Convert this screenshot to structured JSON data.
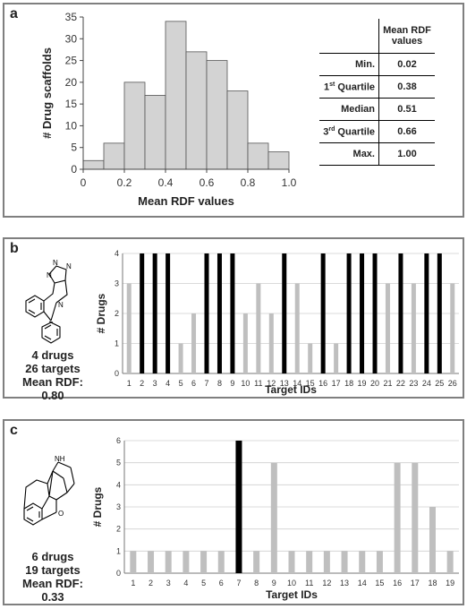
{
  "panels": {
    "a": {
      "label": "a"
    },
    "b": {
      "label": "b",
      "caption": [
        "4 drugs",
        "26 targets",
        "Mean RDF: 0.80"
      ]
    },
    "c": {
      "label": "c",
      "caption": [
        "6 drugs",
        "19 targets",
        "Mean RDF: 0.33"
      ]
    }
  },
  "stats_table": {
    "header": "Mean RDF values",
    "rows": [
      {
        "label": "Min.",
        "label_sup": "",
        "label_rest": "",
        "value": "0.02"
      },
      {
        "label": "1",
        "label_sup": "st",
        "label_rest": " Quartile",
        "value": "0.38"
      },
      {
        "label": "Median",
        "label_sup": "",
        "label_rest": "",
        "value": "0.51"
      },
      {
        "label": "3",
        "label_sup": "rd",
        "label_rest": " Quartile",
        "value": "0.66"
      },
      {
        "label": "Max.",
        "label_sup": "",
        "label_rest": "",
        "value": "1.00"
      }
    ]
  },
  "chart_data": [
    {
      "type": "bar",
      "bin_edges": [
        0,
        0.1,
        0.2,
        0.3,
        0.4,
        0.5,
        0.6,
        0.7,
        0.8,
        0.9,
        1.0
      ],
      "values": [
        2,
        6,
        20,
        17,
        34,
        27,
        25,
        18,
        6,
        4
      ],
      "xlabel": "Mean RDF values",
      "ylabel": "# Drug scaffolds",
      "xlim": [
        0,
        1.0
      ],
      "ylim": [
        0,
        35
      ],
      "xticks": [
        "0",
        "0.2",
        "0.4",
        "0.6",
        "0.8",
        "1.0"
      ],
      "yticks": [
        "0",
        "5",
        "10",
        "15",
        "20",
        "25",
        "30",
        "35"
      ],
      "bar_color": "#d3d3d3",
      "grid": false
    },
    {
      "type": "bar",
      "categories": [
        "1",
        "2",
        "3",
        "4",
        "5",
        "6",
        "7",
        "8",
        "9",
        "10",
        "11",
        "12",
        "13",
        "14",
        "15",
        "16",
        "17",
        "18",
        "19",
        "20",
        "21",
        "22",
        "23",
        "24",
        "25",
        "26"
      ],
      "values": [
        3,
        4,
        4,
        4,
        1,
        2,
        4,
        4,
        4,
        2,
        3,
        2,
        4,
        3,
        1,
        4,
        1,
        4,
        4,
        4,
        3,
        4,
        3,
        4,
        4,
        3
      ],
      "xlabel": "Target IDs",
      "ylabel": "# Drugs",
      "ylim": [
        0,
        4
      ],
      "yticks": [
        "0",
        "1",
        "2",
        "3",
        "4"
      ],
      "colors": {
        "max": "#000000",
        "other": "#bfbfbf"
      },
      "grid": true
    },
    {
      "type": "bar",
      "categories": [
        "1",
        "2",
        "3",
        "4",
        "5",
        "6",
        "7",
        "8",
        "9",
        "10",
        "11",
        "12",
        "13",
        "14",
        "15",
        "16",
        "17",
        "18",
        "19"
      ],
      "values": [
        1,
        1,
        1,
        1,
        1,
        1,
        6,
        1,
        5,
        1,
        1,
        1,
        1,
        1,
        1,
        5,
        5,
        3,
        1
      ],
      "xlabel": "Target IDs",
      "ylabel": "# Drugs",
      "ylim": [
        0,
        6
      ],
      "yticks": [
        "0",
        "1",
        "2",
        "3",
        "4",
        "5",
        "6"
      ],
      "colors": {
        "max": "#000000",
        "other": "#bfbfbf"
      },
      "grid": true
    }
  ]
}
